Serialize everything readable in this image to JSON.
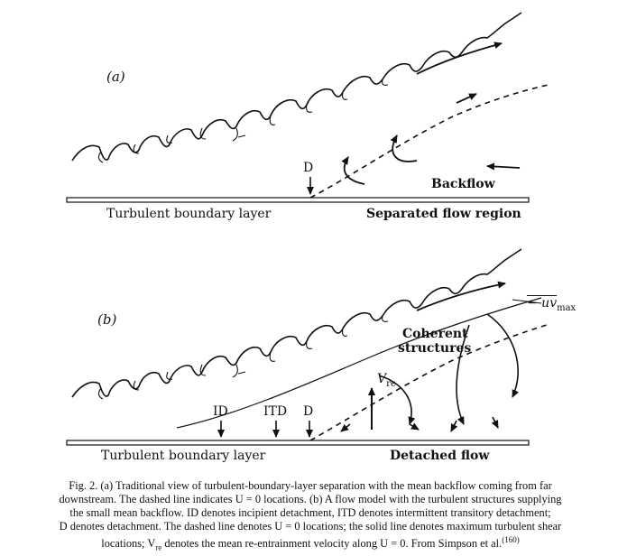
{
  "figure": {
    "panel_a": {
      "tag": "(a)",
      "point_D": "D",
      "backflow": "Backflow",
      "left_region": "Turbulent boundary layer",
      "right_region": "Separated flow region"
    },
    "panel_b": {
      "tag": "(b)",
      "uv_max_label": "− uv",
      "uv_max_sub": "max",
      "coherent_1": "Coherent",
      "coherent_2": "structures",
      "vre_main": "V",
      "vre_sub": "re",
      "point_ID": "ID",
      "point_ITD": "ITD",
      "point_D": "D",
      "left_region": "Turbulent boundary layer",
      "right_region": "Detached flow"
    }
  },
  "caption": {
    "line1": "Fig. 2. (a) Traditional view of turbulent-boundary-layer separation with the mean backflow coming from far",
    "line2": "downstream. The dashed line indicates U = 0 locations. (b) A flow model with the turbulent structures supplying",
    "line3": "the small mean backflow. ID denotes incipient detachment, ITD denotes intermittent transitory detachment;",
    "line4": "D denotes detachment. The dashed line denotes U = 0 locations; the solid line denotes maximum turbulent shear",
    "line5": "locations; V",
    "line5_sub": "re",
    "line5_rest": " denotes the mean re-entrainment velocity along U = 0. From Simpson et al.",
    "line5_ref": "(160)"
  }
}
